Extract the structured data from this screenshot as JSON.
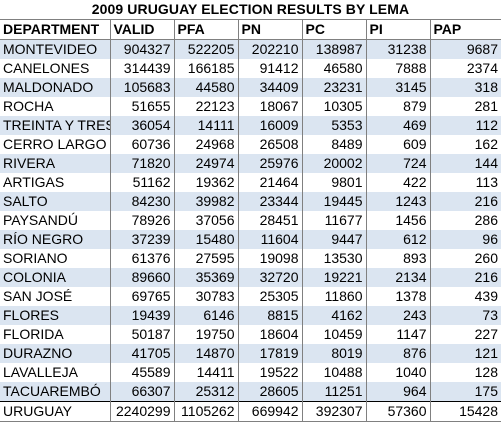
{
  "title": "2009 URUGUAY ELECTION RESULTS BY LEMA",
  "columns": [
    "DEPARTMENT",
    "VALID",
    "PFA",
    "PN",
    "PC",
    "PI",
    "PAP"
  ],
  "rows": [
    [
      "MONTEVIDEO",
      "904327",
      "522205",
      "202210",
      "138987",
      "31238",
      "9687"
    ],
    [
      "CANELONES",
      "314439",
      "166185",
      "91412",
      "46580",
      "7888",
      "2374"
    ],
    [
      "MALDONADO",
      "105683",
      "44580",
      "34409",
      "23231",
      "3145",
      "318"
    ],
    [
      "ROCHA",
      "51655",
      "22123",
      "18067",
      "10305",
      "879",
      "281"
    ],
    [
      "TREINTA Y TRES",
      "36054",
      "14111",
      "16009",
      "5353",
      "469",
      "112"
    ],
    [
      "CERRO LARGO",
      "60736",
      "24968",
      "26508",
      "8489",
      "609",
      "162"
    ],
    [
      "RIVERA",
      "71820",
      "24974",
      "25976",
      "20002",
      "724",
      "144"
    ],
    [
      "ARTIGAS",
      "51162",
      "19362",
      "21464",
      "9801",
      "422",
      "113"
    ],
    [
      "SALTO",
      "84230",
      "39982",
      "23344",
      "19445",
      "1243",
      "216"
    ],
    [
      "PAYSANDÚ",
      "78926",
      "37056",
      "28451",
      "11677",
      "1456",
      "286"
    ],
    [
      "RÍO NEGRO",
      "37239",
      "15480",
      "11604",
      "9447",
      "612",
      "96"
    ],
    [
      "SORIANO",
      "61376",
      "27595",
      "19098",
      "13530",
      "893",
      "260"
    ],
    [
      "COLONIA",
      "89660",
      "35369",
      "32720",
      "19221",
      "2134",
      "216"
    ],
    [
      "SAN JOSÉ",
      "69765",
      "30783",
      "25305",
      "11860",
      "1378",
      "439"
    ],
    [
      "FLORES",
      "19439",
      "6146",
      "8815",
      "4162",
      "243",
      "73"
    ],
    [
      "FLORIDA",
      "50187",
      "19750",
      "18604",
      "10459",
      "1147",
      "227"
    ],
    [
      "DURAZNO",
      "41705",
      "14870",
      "17819",
      "8019",
      "876",
      "121"
    ],
    [
      "LAVALLEJA",
      "45589",
      "14411",
      "19522",
      "10488",
      "1040",
      "128"
    ],
    [
      "TACUAREMBÓ",
      "66307",
      "25312",
      "28605",
      "11251",
      "964",
      "175"
    ]
  ],
  "total": [
    "URUGUAY",
    "2240299",
    "1105262",
    "669942",
    "392307",
    "57360",
    "15428"
  ],
  "colors": {
    "stripe": "#dbe5f1",
    "plain": "#ffffff"
  }
}
